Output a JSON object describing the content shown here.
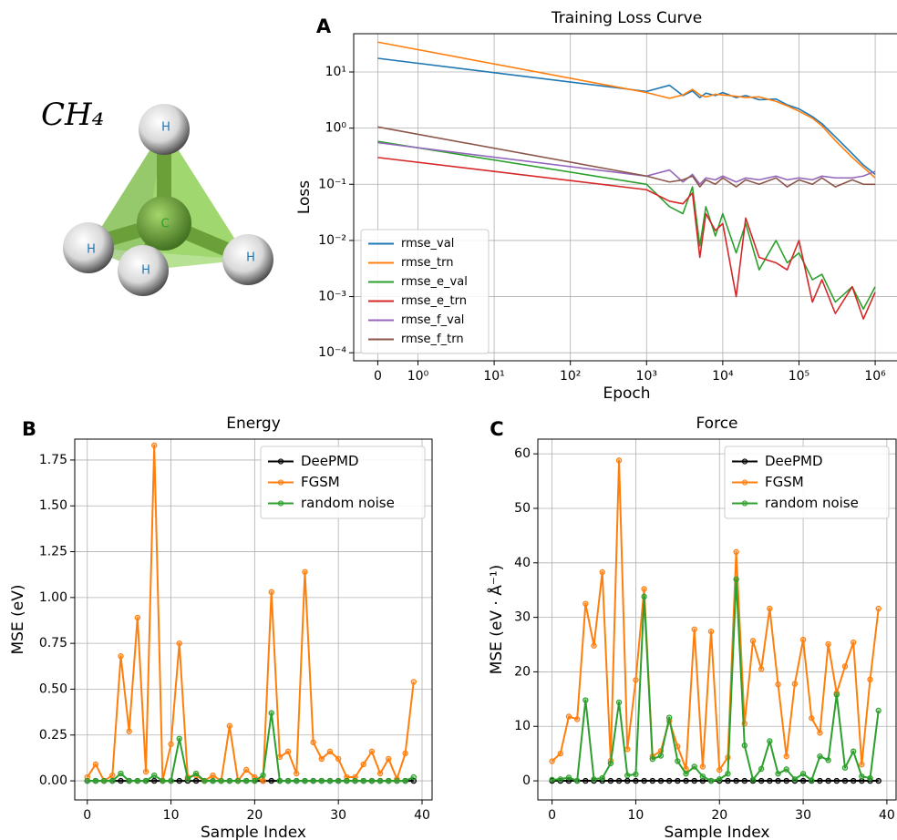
{
  "molecule": {
    "label": "CH₄",
    "atoms": [
      "H",
      "H",
      "H",
      "H",
      "C"
    ]
  },
  "chart_data": [
    {
      "type": "line",
      "panel_label": "A",
      "title": "Training Loss Curve",
      "x_label": "Epoch",
      "y_label": "Loss",
      "xscale": "symlog",
      "linthresh": 1,
      "yscale": "log",
      "grid": true,
      "legend": "lower left",
      "markers": false,
      "xlim": [
        -0.6,
        2100000
      ],
      "ylim": [
        7.2e-05,
        48
      ],
      "xticks": [
        0,
        {
          "value": 1,
          "label": "10⁰"
        },
        {
          "value": 10,
          "label": "10¹"
        },
        {
          "value": 100,
          "label": "10²"
        },
        {
          "value": 1000,
          "label": "10³"
        },
        {
          "value": 10000,
          "label": "10⁴"
        },
        {
          "value": 100000,
          "label": "10⁵"
        },
        {
          "value": 1000000,
          "label": "10⁶"
        }
      ],
      "yticks": [
        {
          "value": 0.0001,
          "label": "10⁻⁴"
        },
        {
          "value": 0.001,
          "label": "10⁻³"
        },
        {
          "value": 0.01,
          "label": "10⁻²"
        },
        {
          "value": 0.1,
          "label": "10⁻¹"
        },
        {
          "value": 1,
          "label": "10⁰"
        },
        {
          "value": 10,
          "label": "10¹"
        }
      ],
      "x": [
        0,
        1000,
        2000,
        3000,
        4000,
        5000,
        6000,
        8000,
        10000,
        15000,
        20000,
        30000,
        50000,
        70000,
        100000,
        150000,
        200000,
        300000,
        500000,
        700000,
        1000000
      ],
      "series": [
        {
          "name": "rmse_val",
          "color": "#1f77b4",
          "values": [
            17.5,
            4.5,
            5.8,
            3.8,
            4.6,
            3.5,
            4.2,
            3.8,
            4.3,
            3.5,
            3.8,
            3.2,
            3.3,
            2.6,
            2.2,
            1.6,
            1.2,
            0.7,
            0.35,
            0.22,
            0.15
          ]
        },
        {
          "name": "rmse_trn",
          "color": "#ff7f0e",
          "values": [
            34,
            4.3,
            3.4,
            3.9,
            4.9,
            3.9,
            3.6,
            4.0,
            3.9,
            3.7,
            3.5,
            3.6,
            3.0,
            2.5,
            2.0,
            1.5,
            1.1,
            0.6,
            0.3,
            0.2,
            0.13
          ]
        },
        {
          "name": "rmse_e_val",
          "color": "#2ca02c",
          "values": [
            0.58,
            0.1,
            0.04,
            0.03,
            0.09,
            0.008,
            0.04,
            0.012,
            0.03,
            0.006,
            0.02,
            0.003,
            0.01,
            0.004,
            0.006,
            0.002,
            0.0025,
            0.0008,
            0.0015,
            0.0006,
            0.0015
          ]
        },
        {
          "name": "rmse_e_trn",
          "color": "#d62728",
          "values": [
            0.3,
            0.08,
            0.05,
            0.045,
            0.07,
            0.005,
            0.03,
            0.015,
            0.02,
            0.001,
            0.025,
            0.005,
            0.004,
            0.003,
            0.01,
            0.0008,
            0.002,
            0.0005,
            0.0015,
            0.0004,
            0.0012
          ]
        },
        {
          "name": "rmse_f_val",
          "color": "#9467bd",
          "values": [
            0.55,
            0.14,
            0.18,
            0.11,
            0.15,
            0.1,
            0.13,
            0.12,
            0.14,
            0.11,
            0.13,
            0.12,
            0.14,
            0.12,
            0.13,
            0.12,
            0.14,
            0.13,
            0.13,
            0.14,
            0.17
          ]
        },
        {
          "name": "rmse_f_trn",
          "color": "#8c564b",
          "values": [
            1.05,
            0.14,
            0.11,
            0.12,
            0.14,
            0.09,
            0.12,
            0.1,
            0.13,
            0.09,
            0.12,
            0.1,
            0.13,
            0.09,
            0.12,
            0.1,
            0.13,
            0.09,
            0.12,
            0.1,
            0.1
          ]
        }
      ]
    },
    {
      "type": "line",
      "panel_label": "B",
      "title": "Energy",
      "x_label": "Sample Index",
      "y_label": "MSE (eV)",
      "xscale": "linear",
      "yscale": "linear",
      "grid": true,
      "legend": "upper right",
      "markers": true,
      "xlim": [
        -1.5,
        41.2
      ],
      "ylim": [
        -0.104,
        1.864
      ],
      "xticks": [
        0,
        10,
        20,
        30,
        40
      ],
      "yticks": [
        {
          "value": 0,
          "label": "0.00"
        },
        0.25,
        {
          "value": 0.5,
          "label": "0.50"
        },
        0.75,
        {
          "value": 1,
          "label": "1.00"
        },
        1.25,
        {
          "value": 1.5,
          "label": "1.50"
        },
        1.75
      ],
      "x": [
        0,
        1,
        2,
        3,
        4,
        5,
        6,
        7,
        8,
        9,
        10,
        11,
        12,
        13,
        14,
        15,
        16,
        17,
        18,
        19,
        20,
        21,
        22,
        23,
        24,
        25,
        26,
        27,
        28,
        29,
        30,
        31,
        32,
        33,
        34,
        35,
        36,
        37,
        38,
        39
      ],
      "series": [
        {
          "name": "DeePMD",
          "color": "#000000",
          "values": [
            0,
            0,
            0,
            0,
            0,
            0,
            0,
            0,
            0,
            0,
            0,
            0,
            0,
            0,
            0,
            0,
            0,
            0,
            0,
            0,
            0,
            0,
            0,
            0,
            0,
            0,
            0,
            0,
            0,
            0,
            0,
            0,
            0,
            0,
            0,
            0,
            0,
            0,
            0,
            0
          ]
        },
        {
          "name": "FGSM",
          "color": "#ff7f0e",
          "values": [
            0.02,
            0.09,
            0.0,
            0.03,
            0.68,
            0.27,
            0.89,
            0.05,
            1.83,
            0.0,
            0.2,
            0.75,
            0.02,
            0.03,
            0.0,
            0.03,
            0.0,
            0.3,
            0.0,
            0.06,
            0.02,
            0.0,
            1.03,
            0.13,
            0.16,
            0.04,
            1.14,
            0.21,
            0.12,
            0.16,
            0.12,
            0.02,
            0.02,
            0.09,
            0.16,
            0.04,
            0.12,
            0.01,
            0.15,
            0.54
          ]
        },
        {
          "name": "random noise",
          "color": "#2ca02c",
          "values": [
            0,
            0,
            0,
            0,
            0.04,
            0,
            0,
            0,
            0.03,
            0,
            0,
            0.23,
            0.01,
            0.04,
            0,
            0,
            0,
            0,
            0,
            0,
            0,
            0.03,
            0.37,
            0,
            0,
            0,
            0,
            0,
            0,
            0,
            0,
            0,
            0,
            0,
            0,
            0,
            0,
            0,
            0,
            0.02
          ]
        }
      ]
    },
    {
      "type": "line",
      "panel_label": "C",
      "title": "Force",
      "x_label": "Sample Index",
      "y_label": "MSE (eV · Å⁻¹)",
      "xscale": "linear",
      "yscale": "linear",
      "grid": true,
      "legend": "upper right",
      "markers": true,
      "xlim": [
        -1.7,
        41.1
      ],
      "ylim": [
        -3.5,
        62.7
      ],
      "xticks": [
        0,
        10,
        20,
        30,
        40
      ],
      "yticks": [
        0,
        10,
        20,
        30,
        40,
        50,
        60
      ],
      "x": [
        0,
        1,
        2,
        3,
        4,
        5,
        6,
        7,
        8,
        9,
        10,
        11,
        12,
        13,
        14,
        15,
        16,
        17,
        18,
        19,
        20,
        21,
        22,
        23,
        24,
        25,
        26,
        27,
        28,
        29,
        30,
        31,
        32,
        33,
        34,
        35,
        36,
        37,
        38,
        39
      ],
      "series": [
        {
          "name": "DeePMD",
          "color": "#000000",
          "values": [
            0,
            0,
            0,
            0,
            0,
            0,
            0,
            0,
            0,
            0,
            0,
            0,
            0,
            0,
            0,
            0,
            0,
            0,
            0,
            0,
            0,
            0,
            0,
            0,
            0,
            0,
            0,
            0,
            0,
            0,
            0,
            0,
            0,
            0,
            0,
            0,
            0,
            0,
            0,
            0
          ]
        },
        {
          "name": "FGSM",
          "color": "#ff7f0e",
          "values": [
            3.6,
            5,
            11.8,
            11.3,
            32.5,
            24.8,
            38.3,
            3.7,
            58.8,
            5.8,
            18.5,
            35.2,
            4.5,
            5.5,
            11,
            6.3,
            2.2,
            27.8,
            2.6,
            27.4,
            2,
            4.3,
            42,
            10.5,
            25.7,
            20.5,
            31.6,
            17.7,
            4.5,
            17.8,
            25.9,
            11.5,
            8.8,
            25.1,
            16.1,
            21,
            25.4,
            3,
            18.6,
            31.6
          ]
        },
        {
          "name": "random noise",
          "color": "#2ca02c",
          "values": [
            0.2,
            0.3,
            0.6,
            0,
            14.8,
            0.3,
            0.5,
            3.2,
            14.4,
            1,
            1.2,
            33.8,
            4,
            4.6,
            11.6,
            3.6,
            1.3,
            2.6,
            0.8,
            0,
            0.3,
            1.3,
            37,
            6.5,
            0.2,
            2.2,
            7.3,
            1.3,
            2.1,
            0.3,
            1.3,
            0.1,
            4.5,
            3.8,
            15.8,
            2.4,
            5.4,
            0.8,
            0.5,
            12.9
          ]
        }
      ]
    }
  ]
}
